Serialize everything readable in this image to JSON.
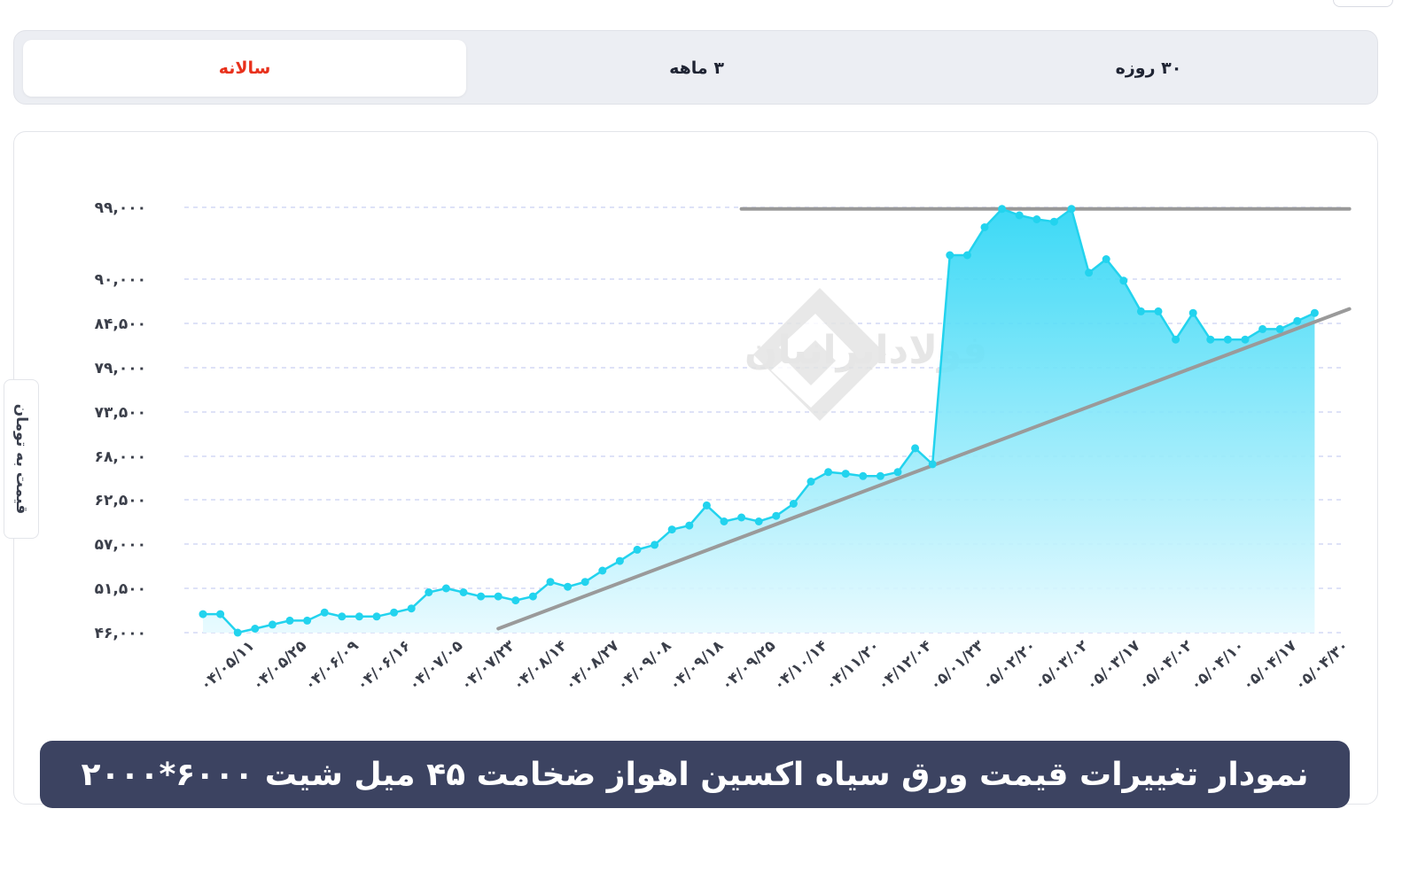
{
  "tabs": [
    {
      "label": "سالانه",
      "active": true
    },
    {
      "label": "۳ ماهه",
      "active": false
    },
    {
      "label": "۳۰ روزه",
      "active": false
    }
  ],
  "watermark": {
    "text": "فولادایرانیان",
    "icon": "steel-logo-icon"
  },
  "caption": "نمودار تغییرات قیمت ورق سیاه اکسین اهواز ضخامت ۴۵ میل شیت ۶۰۰۰*۲۰۰۰",
  "colors": {
    "line": "#22d3ee",
    "area_top": "#27d5f5",
    "area_bottom": "#e6faff",
    "trend": "#9a9a9a",
    "resistance": "#999999",
    "active_tab": "#e8311c",
    "caption_bg": "#3c4361"
  },
  "chart_data": {
    "type": "area",
    "title": "",
    "ylabel": "قیمت به تومان",
    "xlabel": "",
    "ylim": [
      46000,
      99000
    ],
    "yticks": [
      {
        "value": 46000,
        "label": "۴۶,۰۰۰"
      },
      {
        "value": 51500,
        "label": "۵۱,۵۰۰"
      },
      {
        "value": 57000,
        "label": "۵۷,۰۰۰"
      },
      {
        "value": 62500,
        "label": "۶۲,۵۰۰"
      },
      {
        "value": 68000,
        "label": "۶۸,۰۰۰"
      },
      {
        "value": 73500,
        "label": "۷۳,۵۰۰"
      },
      {
        "value": 79000,
        "label": "۷۹,۰۰۰"
      },
      {
        "value": 84500,
        "label": "۸۴,۵۰۰"
      },
      {
        "value": 90000,
        "label": "۹۰,۰۰۰"
      },
      {
        "value": 99000,
        "label": "۹۹,۰۰۰"
      }
    ],
    "xticks": [
      {
        "index": 3,
        "label": "۰۴/۰۵/۱۱"
      },
      {
        "index": 6,
        "label": "۰۴/۰۵/۲۵"
      },
      {
        "index": 9,
        "label": "۰۴/۰۶/۰۹"
      },
      {
        "index": 12,
        "label": "۰۴/۰۶/۱۶"
      },
      {
        "index": 15,
        "label": "۰۴/۰۷/۰۵"
      },
      {
        "index": 18,
        "label": "۰۴/۰۷/۲۳"
      },
      {
        "index": 21,
        "label": "۰۴/۰۸/۱۴"
      },
      {
        "index": 24,
        "label": "۰۴/۰۸/۲۷"
      },
      {
        "index": 27,
        "label": "۰۴/۰۹/۰۸"
      },
      {
        "index": 30,
        "label": "۰۴/۰۹/۱۸"
      },
      {
        "index": 33,
        "label": "۰۴/۰۹/۲۵"
      },
      {
        "index": 36,
        "label": "۰۴/۱۰/۱۴"
      },
      {
        "index": 39,
        "label": "۰۴/۱۱/۲۰"
      },
      {
        "index": 42,
        "label": "۰۴/۱۲/۰۴"
      },
      {
        "index": 45,
        "label": "۰۵/۰۱/۲۳"
      },
      {
        "index": 48,
        "label": "۰۵/۰۲/۲۰"
      },
      {
        "index": 51,
        "label": "۰۵/۰۳/۰۲"
      },
      {
        "index": 54,
        "label": "۰۵/۰۳/۱۷"
      },
      {
        "index": 57,
        "label": "۰۵/۰۴/۰۲"
      },
      {
        "index": 60,
        "label": "۰۵/۰۴/۱۰"
      },
      {
        "index": 63,
        "label": "۰۵/۰۴/۱۷"
      },
      {
        "index": 66,
        "label": "۰۵/۰۴/۳۰"
      }
    ],
    "series": [
      {
        "values": [
          48300,
          48300,
          46000,
          46500,
          47000,
          47500,
          47500,
          48500,
          48000,
          48000,
          48000,
          48500,
          49000,
          51000,
          51500,
          51000,
          50500,
          50500,
          50000,
          50500,
          52300,
          51700,
          52300,
          53700,
          54900,
          56300,
          56900,
          58800,
          59300,
          61800,
          59800,
          60300,
          59800,
          60500,
          62000,
          64800,
          66000,
          65800,
          65500,
          65500,
          66000,
          69000,
          67000,
          93000,
          93000,
          96500,
          98800,
          98000,
          97500,
          97200,
          98800,
          90800,
          92500,
          89800,
          86000,
          86000,
          82500,
          85800,
          82500,
          82500,
          82500,
          83800,
          83800,
          84800,
          85800
        ]
      }
    ],
    "trendlines": [
      {
        "from": {
          "index": 17,
          "value": 46500
        },
        "to": {
          "index": 66,
          "value": 86300
        }
      },
      {
        "from": {
          "index": 31,
          "value": 98800
        },
        "to": {
          "index": 66,
          "value": 98800
        }
      }
    ],
    "grid": true,
    "legend": "none"
  }
}
